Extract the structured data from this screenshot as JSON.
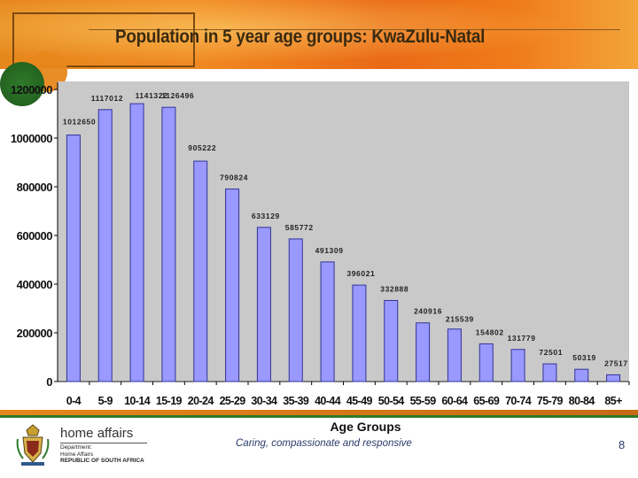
{
  "slide": {
    "title": "Population in 5 year age groups: KwaZulu-Natal",
    "tagline": "Caring, compassionate and responsive",
    "page_number": "8"
  },
  "branding": {
    "name": "home affairs",
    "sub_line1": "Department:",
    "sub_line2": "Home Affairs",
    "sub_line3": "REPUBLIC OF SOUTH AFRICA"
  },
  "colors": {
    "bar_fill": "#9999ff",
    "bar_stroke": "#333399",
    "plot_bg": "#c9c9c9",
    "banner_orange": "#e6871c"
  },
  "chart_data": {
    "type": "bar",
    "title": "Population in 5 year age groups: KwaZulu-Natal",
    "xlabel": "Age Groups",
    "ylabel": "",
    "ylim": [
      0,
      1200000
    ],
    "yticks": [
      0,
      200000,
      400000,
      600000,
      800000,
      1000000,
      1200000
    ],
    "ytick_labels": [
      "0",
      "200000",
      "400000",
      "600000",
      "800000",
      "1000000",
      "1200000"
    ],
    "categories": [
      "0-4",
      "5-9",
      "10-14",
      "15-19",
      "20-24",
      "25-29",
      "30-34",
      "35-39",
      "40-44",
      "45-49",
      "50-54",
      "55-59",
      "60-64",
      "65-69",
      "70-74",
      "75-79",
      "80-84",
      "85+"
    ],
    "values": [
      1012650,
      1117012,
      1141322,
      1126496,
      905222,
      790824,
      633129,
      585772,
      491309,
      396021,
      332888,
      240916,
      215539,
      154802,
      131779,
      72501,
      50319,
      27517
    ],
    "data_labels": [
      "1012650",
      "1117012",
      "1141322",
      "1126496",
      "905222",
      "790824",
      "633129",
      "585772",
      "491309",
      "396021",
      "332888",
      "240916",
      "215539",
      "154802",
      "131779",
      "72501",
      "50319",
      "27517"
    ],
    "grid": false,
    "legend": "none"
  }
}
